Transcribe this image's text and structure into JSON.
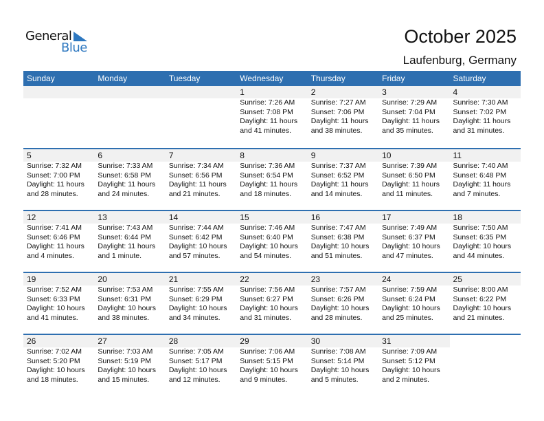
{
  "logo": {
    "text1": "General",
    "text2": "Blue"
  },
  "title": "October 2025",
  "location": "Laufenburg, Germany",
  "days": [
    "Sunday",
    "Monday",
    "Tuesday",
    "Wednesday",
    "Thursday",
    "Friday",
    "Saturday"
  ],
  "weeks": [
    [
      null,
      null,
      null,
      {
        "d": "1",
        "sr": "Sunrise: 7:26 AM",
        "ss": "Sunset: 7:08 PM",
        "dl1": "Daylight: 11 hours",
        "dl2": "and 41 minutes."
      },
      {
        "d": "2",
        "sr": "Sunrise: 7:27 AM",
        "ss": "Sunset: 7:06 PM",
        "dl1": "Daylight: 11 hours",
        "dl2": "and 38 minutes."
      },
      {
        "d": "3",
        "sr": "Sunrise: 7:29 AM",
        "ss": "Sunset: 7:04 PM",
        "dl1": "Daylight: 11 hours",
        "dl2": "and 35 minutes."
      },
      {
        "d": "4",
        "sr": "Sunrise: 7:30 AM",
        "ss": "Sunset: 7:02 PM",
        "dl1": "Daylight: 11 hours",
        "dl2": "and 31 minutes."
      }
    ],
    [
      {
        "d": "5",
        "sr": "Sunrise: 7:32 AM",
        "ss": "Sunset: 7:00 PM",
        "dl1": "Daylight: 11 hours",
        "dl2": "and 28 minutes."
      },
      {
        "d": "6",
        "sr": "Sunrise: 7:33 AM",
        "ss": "Sunset: 6:58 PM",
        "dl1": "Daylight: 11 hours",
        "dl2": "and 24 minutes."
      },
      {
        "d": "7",
        "sr": "Sunrise: 7:34 AM",
        "ss": "Sunset: 6:56 PM",
        "dl1": "Daylight: 11 hours",
        "dl2": "and 21 minutes."
      },
      {
        "d": "8",
        "sr": "Sunrise: 7:36 AM",
        "ss": "Sunset: 6:54 PM",
        "dl1": "Daylight: 11 hours",
        "dl2": "and 18 minutes."
      },
      {
        "d": "9",
        "sr": "Sunrise: 7:37 AM",
        "ss": "Sunset: 6:52 PM",
        "dl1": "Daylight: 11 hours",
        "dl2": "and 14 minutes."
      },
      {
        "d": "10",
        "sr": "Sunrise: 7:39 AM",
        "ss": "Sunset: 6:50 PM",
        "dl1": "Daylight: 11 hours",
        "dl2": "and 11 minutes."
      },
      {
        "d": "11",
        "sr": "Sunrise: 7:40 AM",
        "ss": "Sunset: 6:48 PM",
        "dl1": "Daylight: 11 hours",
        "dl2": "and 7 minutes."
      }
    ],
    [
      {
        "d": "12",
        "sr": "Sunrise: 7:41 AM",
        "ss": "Sunset: 6:46 PM",
        "dl1": "Daylight: 11 hours",
        "dl2": "and 4 minutes."
      },
      {
        "d": "13",
        "sr": "Sunrise: 7:43 AM",
        "ss": "Sunset: 6:44 PM",
        "dl1": "Daylight: 11 hours",
        "dl2": "and 1 minute."
      },
      {
        "d": "14",
        "sr": "Sunrise: 7:44 AM",
        "ss": "Sunset: 6:42 PM",
        "dl1": "Daylight: 10 hours",
        "dl2": "and 57 minutes."
      },
      {
        "d": "15",
        "sr": "Sunrise: 7:46 AM",
        "ss": "Sunset: 6:40 PM",
        "dl1": "Daylight: 10 hours",
        "dl2": "and 54 minutes."
      },
      {
        "d": "16",
        "sr": "Sunrise: 7:47 AM",
        "ss": "Sunset: 6:38 PM",
        "dl1": "Daylight: 10 hours",
        "dl2": "and 51 minutes."
      },
      {
        "d": "17",
        "sr": "Sunrise: 7:49 AM",
        "ss": "Sunset: 6:37 PM",
        "dl1": "Daylight: 10 hours",
        "dl2": "and 47 minutes."
      },
      {
        "d": "18",
        "sr": "Sunrise: 7:50 AM",
        "ss": "Sunset: 6:35 PM",
        "dl1": "Daylight: 10 hours",
        "dl2": "and 44 minutes."
      }
    ],
    [
      {
        "d": "19",
        "sr": "Sunrise: 7:52 AM",
        "ss": "Sunset: 6:33 PM",
        "dl1": "Daylight: 10 hours",
        "dl2": "and 41 minutes."
      },
      {
        "d": "20",
        "sr": "Sunrise: 7:53 AM",
        "ss": "Sunset: 6:31 PM",
        "dl1": "Daylight: 10 hours",
        "dl2": "and 38 minutes."
      },
      {
        "d": "21",
        "sr": "Sunrise: 7:55 AM",
        "ss": "Sunset: 6:29 PM",
        "dl1": "Daylight: 10 hours",
        "dl2": "and 34 minutes."
      },
      {
        "d": "22",
        "sr": "Sunrise: 7:56 AM",
        "ss": "Sunset: 6:27 PM",
        "dl1": "Daylight: 10 hours",
        "dl2": "and 31 minutes."
      },
      {
        "d": "23",
        "sr": "Sunrise: 7:57 AM",
        "ss": "Sunset: 6:26 PM",
        "dl1": "Daylight: 10 hours",
        "dl2": "and 28 minutes."
      },
      {
        "d": "24",
        "sr": "Sunrise: 7:59 AM",
        "ss": "Sunset: 6:24 PM",
        "dl1": "Daylight: 10 hours",
        "dl2": "and 25 minutes."
      },
      {
        "d": "25",
        "sr": "Sunrise: 8:00 AM",
        "ss": "Sunset: 6:22 PM",
        "dl1": "Daylight: 10 hours",
        "dl2": "and 21 minutes."
      }
    ],
    [
      {
        "d": "26",
        "sr": "Sunrise: 7:02 AM",
        "ss": "Sunset: 5:20 PM",
        "dl1": "Daylight: 10 hours",
        "dl2": "and 18 minutes."
      },
      {
        "d": "27",
        "sr": "Sunrise: 7:03 AM",
        "ss": "Sunset: 5:19 PM",
        "dl1": "Daylight: 10 hours",
        "dl2": "and 15 minutes."
      },
      {
        "d": "28",
        "sr": "Sunrise: 7:05 AM",
        "ss": "Sunset: 5:17 PM",
        "dl1": "Daylight: 10 hours",
        "dl2": "and 12 minutes."
      },
      {
        "d": "29",
        "sr": "Sunrise: 7:06 AM",
        "ss": "Sunset: 5:15 PM",
        "dl1": "Daylight: 10 hours",
        "dl2": "and 9 minutes."
      },
      {
        "d": "30",
        "sr": "Sunrise: 7:08 AM",
        "ss": "Sunset: 5:14 PM",
        "dl1": "Daylight: 10 hours",
        "dl2": "and 5 minutes."
      },
      {
        "d": "31",
        "sr": "Sunrise: 7:09 AM",
        "ss": "Sunset: 5:12 PM",
        "dl1": "Daylight: 10 hours",
        "dl2": "and 2 minutes."
      },
      null
    ]
  ]
}
